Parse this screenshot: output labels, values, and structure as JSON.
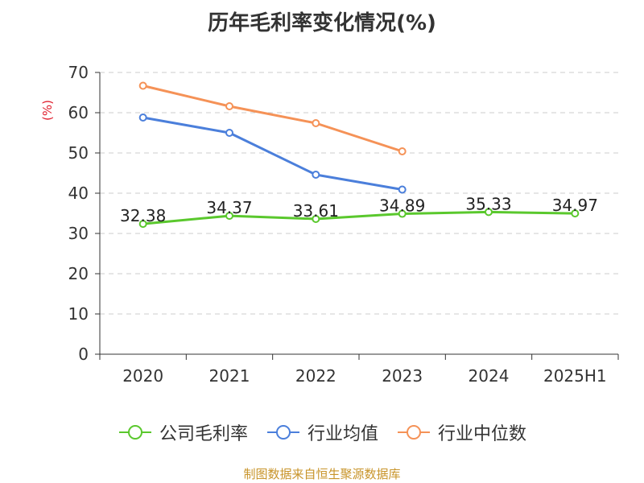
{
  "chart_data": {
    "type": "line",
    "title": "历年毛利率变化情况(%)",
    "ylabel": "(%)",
    "xlabel": "",
    "categories": [
      "2020",
      "2021",
      "2022",
      "2023",
      "2024",
      "2025H1"
    ],
    "ylim": [
      0,
      70
    ],
    "yticks": [
      0,
      10,
      20,
      30,
      40,
      50,
      60,
      70
    ],
    "grid": true,
    "legend_position": "bottom",
    "series": [
      {
        "name": "公司毛利率",
        "color": "#5ac82d",
        "values": [
          32.38,
          34.37,
          33.61,
          34.89,
          35.33,
          34.97
        ],
        "show_labels": true
      },
      {
        "name": "行业均值",
        "color": "#4b7fdb",
        "values": [
          58.8,
          55.0,
          44.6,
          40.9,
          null,
          null
        ],
        "show_labels": false
      },
      {
        "name": "行业中位数",
        "color": "#f59257",
        "values": [
          66.7,
          61.6,
          57.4,
          50.4,
          null,
          null
        ],
        "show_labels": false
      }
    ]
  },
  "footer": "制图数据来自恒生聚源数据库"
}
